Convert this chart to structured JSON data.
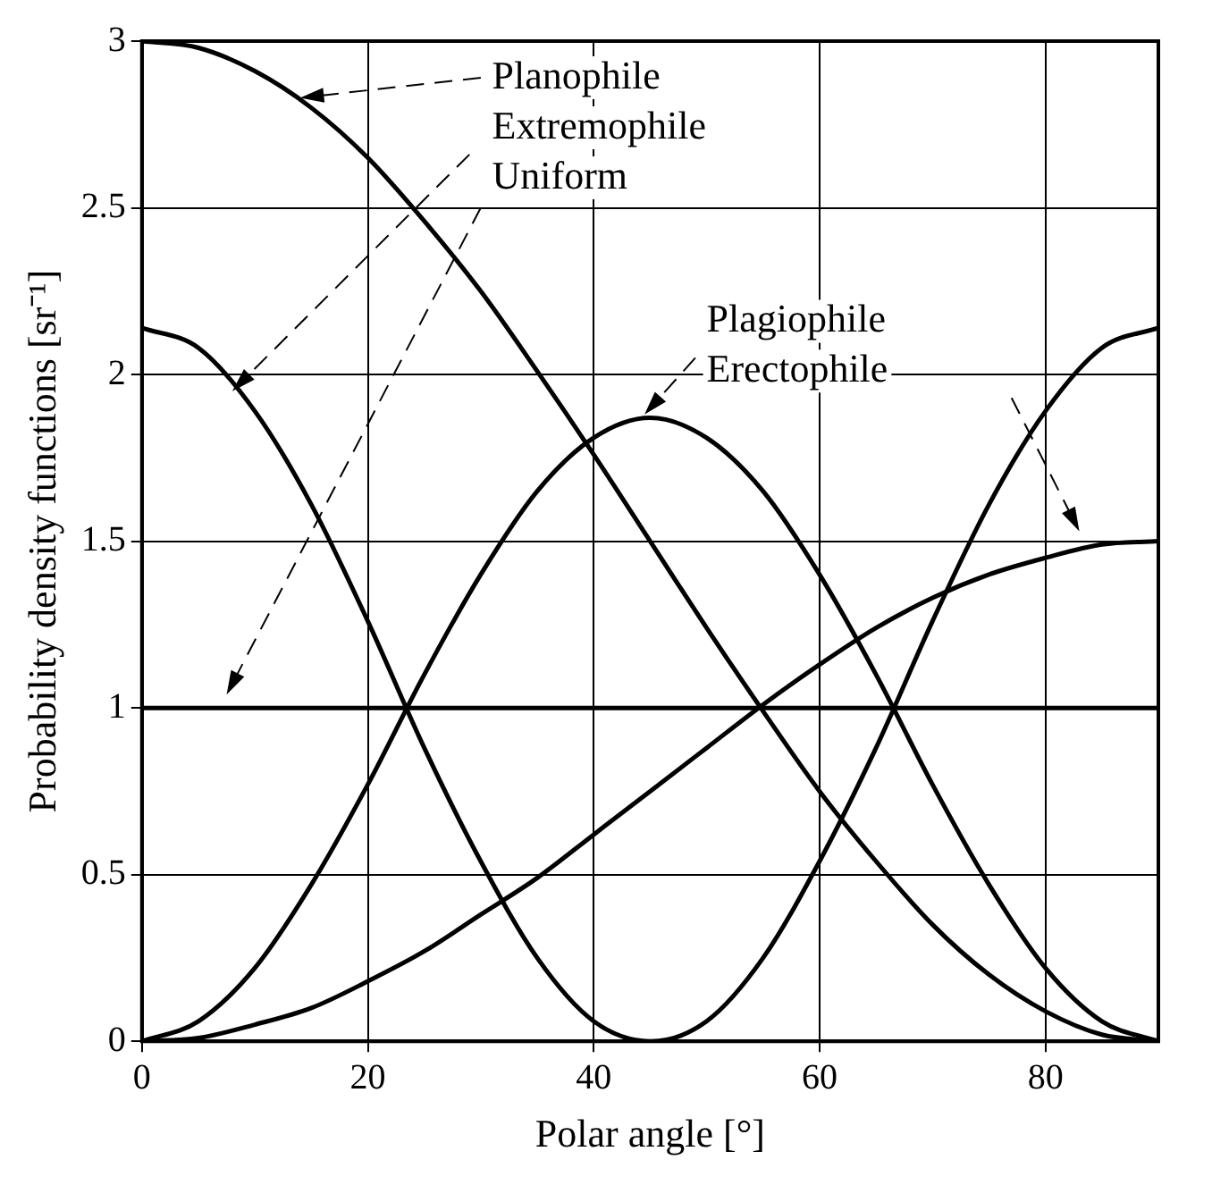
{
  "chart_data": {
    "type": "line",
    "xlabel": "Polar angle [°]",
    "ylabel": "Probability density functions [sr⁻¹]",
    "x": [
      0,
      5,
      10,
      15,
      20,
      25,
      30,
      35,
      40,
      45,
      50,
      55,
      60,
      65,
      70,
      75,
      80,
      85,
      90
    ],
    "series": [
      {
        "color": "#000000",
        "values": [
          3,
          2.98,
          2.91,
          2.8,
          2.65,
          2.46,
          2.25,
          2.01,
          1.76,
          1.5,
          1.24,
          0.99,
          0.75,
          0.54,
          0.35,
          0.2,
          0.09,
          0.02,
          0
        ]
      },
      {
        "color": "#000000",
        "values": [
          2.14,
          2.08,
          1.89,
          1.61,
          1.26,
          0.88,
          0.54,
          0.25,
          0.06,
          0,
          0.06,
          0.25,
          0.54,
          0.88,
          1.26,
          1.61,
          1.89,
          2.08,
          2.14
        ]
      },
      {
        "color": "#000000",
        "values": [
          1,
          1,
          1,
          1,
          1,
          1,
          1,
          1,
          1,
          1,
          1,
          1,
          1,
          1,
          1,
          1,
          1,
          1,
          1
        ]
      },
      {
        "color": "#000000",
        "values": [
          0,
          0.06,
          0.22,
          0.47,
          0.77,
          1.1,
          1.4,
          1.65,
          1.81,
          1.87,
          1.81,
          1.65,
          1.4,
          1.1,
          0.77,
          0.47,
          0.22,
          0.06,
          0
        ]
      },
      {
        "color": "#000000",
        "values": [
          0,
          0.01,
          0.05,
          0.1,
          0.18,
          0.27,
          0.38,
          0.49,
          0.62,
          0.75,
          0.88,
          1.01,
          1.13,
          1.24,
          1.33,
          1.4,
          1.45,
          1.49,
          1.5
        ]
      }
    ],
    "annotations": [
      "Planophile",
      "Extremophile",
      "Uniform",
      "Plagiophile",
      "Erectophile"
    ],
    "xlim": [
      0,
      90
    ],
    "xticks": [
      0,
      20,
      40,
      60,
      80
    ],
    "ylim": [
      0,
      3
    ],
    "yticks": [
      0,
      0.5,
      1,
      1.5,
      2,
      2.5,
      3
    ],
    "grid": true,
    "legend": false,
    "marker": "none",
    "line_style": "solid"
  }
}
